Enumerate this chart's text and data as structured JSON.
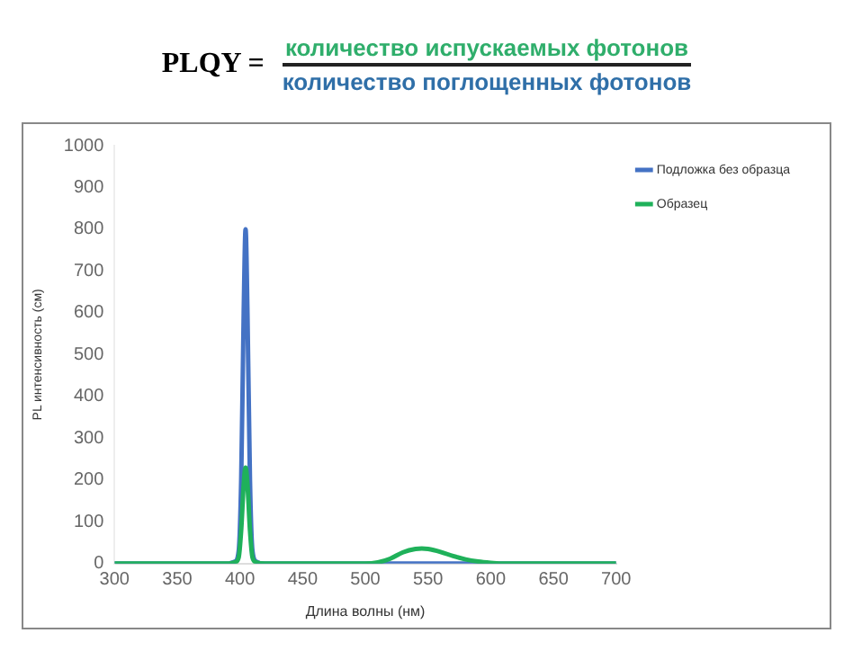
{
  "chart_data": {
    "type": "line",
    "annotations": [
      "PLQY =",
      "количество испускаемых фотонов",
      "количество поглощенных фотонов"
    ],
    "xlabel": "Длина волны (нм)",
    "ylabel": "PL интенсивность (см)",
    "xlim": [
      300,
      700
    ],
    "xticks": [
      300,
      350,
      400,
      450,
      500,
      550,
      600,
      650,
      700
    ],
    "ylim": [
      0,
      1000
    ],
    "yticks": [
      0,
      100,
      200,
      300,
      400,
      500,
      600,
      700,
      800,
      900,
      1000
    ],
    "grid": false,
    "legend": "top right",
    "marker": "none",
    "line_style": "solid",
    "series": [
      {
        "name": "Подложка без образца",
        "color": "#4472c4",
        "x": [
          300,
          390,
          396,
          399,
          401,
          403,
          404.5,
          406,
          408,
          410,
          413,
          420,
          700
        ],
        "values": [
          0,
          0,
          5,
          30,
          200,
          600,
          800,
          600,
          200,
          30,
          5,
          0,
          0
        ]
      },
      {
        "name": "Образец",
        "color": "#1fb15a",
        "x": [
          300,
          390,
          396,
          399,
          401,
          403,
          404.5,
          406,
          408,
          410,
          413,
          420,
          500,
          510,
          520,
          530,
          540,
          545,
          550,
          560,
          570,
          580,
          590,
          600,
          610,
          700
        ],
        "values": [
          0,
          0,
          3,
          15,
          80,
          190,
          230,
          190,
          80,
          15,
          3,
          0,
          0,
          3,
          12,
          27,
          35,
          36,
          35,
          28,
          18,
          10,
          5,
          2,
          0,
          0
        ]
      }
    ]
  }
}
